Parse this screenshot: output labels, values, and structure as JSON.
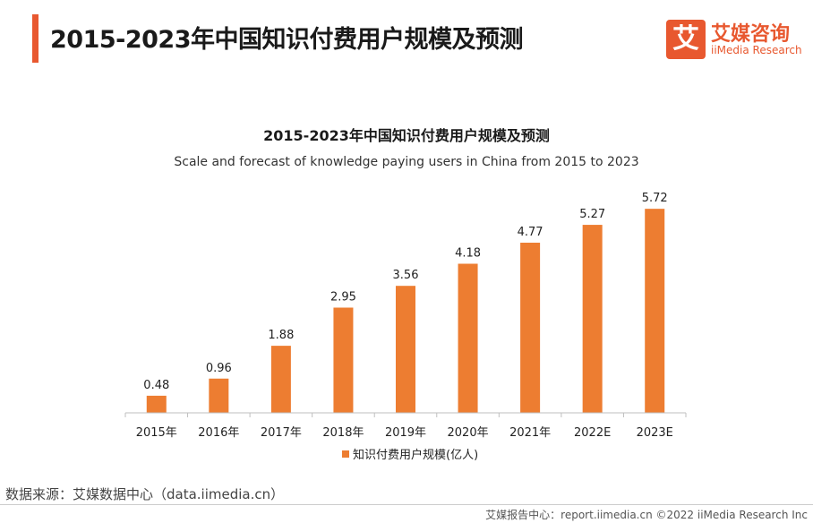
{
  "header": {
    "title": "2015-2023年中国知识付费用户规模及预测"
  },
  "logo": {
    "mark": "艾",
    "name_cn": "艾媒咨询",
    "name_en": "iiMedia Research"
  },
  "chart_data": {
    "type": "bar",
    "title": "2015-2023年中国知识付费用户规模及预测",
    "subtitle": "Scale and forecast of knowledge paying users in China from 2015 to 2023",
    "categories": [
      "2015年",
      "2016年",
      "2017年",
      "2018年",
      "2019年",
      "2020年",
      "2021年",
      "2022E",
      "2023E"
    ],
    "series": [
      {
        "name": "知识付费用户规模(亿人)",
        "values": [
          0.48,
          0.96,
          1.88,
          2.95,
          3.56,
          4.18,
          4.77,
          5.27,
          5.72
        ],
        "color": "#ed7d31"
      }
    ],
    "ylim": [
      0,
      6
    ],
    "grid": false,
    "legend_position": "bottom"
  },
  "source": "数据来源：艾媒数据中心（data.iimedia.cn）",
  "footer": "艾媒报告中心：report.iimedia.cn  ©2022  iiMedia Research Inc"
}
